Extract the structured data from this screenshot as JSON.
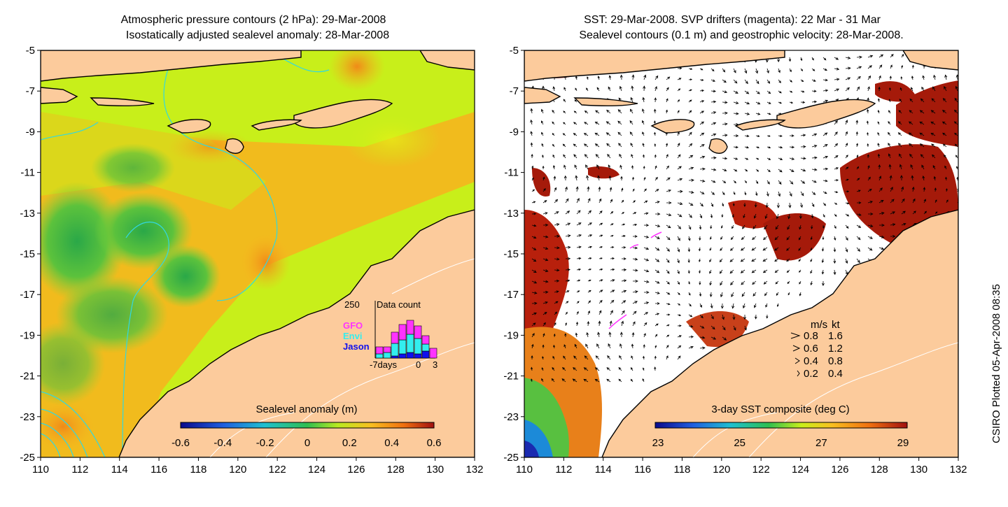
{
  "left_panel": {
    "title_line1": "Atmospheric pressure contours (2 hPa): 29-Mar-2008",
    "title_line2": "Isostatically adjusted sealevel anomaly: 28-Mar-2008",
    "colorbar_label": "Sealevel anomaly (m)",
    "colorbar_ticks": [
      "-0.6",
      "-0.4",
      "-0.2",
      "0",
      "0.2",
      "0.4",
      "0.6"
    ],
    "inset": {
      "max_label": "250",
      "title": "Data count",
      "legend": [
        {
          "name": "GFO",
          "color": "#ff33ff"
        },
        {
          "name": "Envi",
          "color": "#33eeee"
        },
        {
          "name": "Jason",
          "color": "#1010ee"
        }
      ],
      "x_labels": [
        "-7days",
        "0",
        "3"
      ]
    }
  },
  "right_panel": {
    "title_line1": "SST: 29-Mar-2008. SVP drifters (magenta): 22 Mar - 31 Mar",
    "title_line2": "Sealevel contours (0.1 m) and geostrophic velocity: 28-Mar-2008.",
    "colorbar_label": "3-day SST composite (deg C)",
    "colorbar_ticks": [
      "23",
      "25",
      "27",
      "29"
    ],
    "speed_legend": {
      "header_ms": "m/s",
      "header_kt": "kt",
      "rows": [
        {
          "ms": "0.8",
          "kt": "1.6"
        },
        {
          "ms": "0.6",
          "kt": "1.2"
        },
        {
          "ms": "0.4",
          "kt": "0.8"
        },
        {
          "ms": "0.2",
          "kt": "0.4"
        }
      ]
    }
  },
  "axes": {
    "y_ticks": [
      "-5",
      "-7",
      "-9",
      "-11",
      "-13",
      "-15",
      "-17",
      "-19",
      "-21",
      "-23",
      "-25"
    ],
    "x_ticks": [
      "110",
      "112",
      "114",
      "116",
      "118",
      "120",
      "122",
      "124",
      "126",
      "128",
      "130",
      "132"
    ]
  },
  "credit": "CSIRO Plotted 05-Apr-2008 08:35",
  "colors": {
    "land": "#fccb9c",
    "sla_green": "#7ed23a",
    "sla_yellow": "#c8ef1a",
    "sla_orange": "#f8b21f",
    "sst_red": "#a51a0a"
  }
}
